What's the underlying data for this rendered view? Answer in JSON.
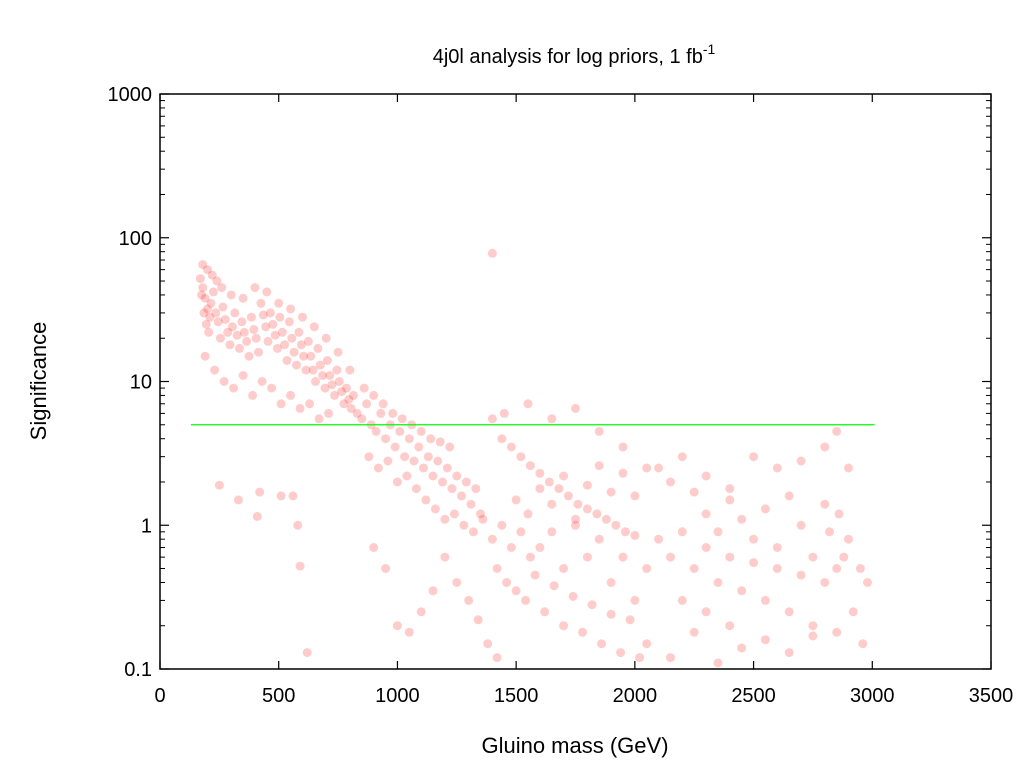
{
  "chart_data": {
    "type": "scatter",
    "title": "4j0l analysis for log priors, 1 fb",
    "title_superscript": "-1",
    "xlabel": "Gluino mass (GeV)",
    "ylabel": "Significance",
    "xlim": [
      0,
      3500
    ],
    "ylim": [
      0.1,
      1000
    ],
    "yscale": "log",
    "grid": false,
    "legend": "none",
    "x_ticks": [
      "0",
      "500",
      "1000",
      "1500",
      "2000",
      "2500",
      "3000",
      "3500"
    ],
    "y_ticks": [
      "0.1",
      "1",
      "10",
      "100",
      "1000"
    ],
    "series": [
      {
        "color": "#ff0000",
        "marker": "circle",
        "alpha": 0.2,
        "points": [
          [
            170,
            52
          ],
          [
            180,
            45
          ],
          [
            190,
            38
          ],
          [
            200,
            32
          ],
          [
            210,
            28
          ],
          [
            175,
            40
          ],
          [
            185,
            30
          ],
          [
            195,
            25
          ],
          [
            205,
            22
          ],
          [
            215,
            35
          ],
          [
            225,
            42
          ],
          [
            235,
            30
          ],
          [
            245,
            26
          ],
          [
            255,
            20
          ],
          [
            265,
            33
          ],
          [
            275,
            27
          ],
          [
            285,
            22
          ],
          [
            295,
            18
          ],
          [
            305,
            24
          ],
          [
            315,
            30
          ],
          [
            325,
            21
          ],
          [
            335,
            17
          ],
          [
            345,
            26
          ],
          [
            355,
            22
          ],
          [
            365,
            19
          ],
          [
            375,
            15
          ],
          [
            385,
            28
          ],
          [
            395,
            23
          ],
          [
            405,
            20
          ],
          [
            415,
            16
          ],
          [
            425,
            35
          ],
          [
            435,
            29
          ],
          [
            445,
            24
          ],
          [
            455,
            19
          ],
          [
            465,
            30
          ],
          [
            475,
            25
          ],
          [
            485,
            21
          ],
          [
            495,
            17
          ],
          [
            505,
            28
          ],
          [
            515,
            22
          ],
          [
            525,
            18
          ],
          [
            535,
            14
          ],
          [
            545,
            26
          ],
          [
            555,
            20
          ],
          [
            565,
            16
          ],
          [
            575,
            13
          ],
          [
            585,
            22
          ],
          [
            595,
            18
          ],
          [
            605,
            15
          ],
          [
            615,
            12
          ],
          [
            625,
            19
          ],
          [
            635,
            15
          ],
          [
            645,
            12
          ],
          [
            655,
            10
          ],
          [
            665,
            17
          ],
          [
            675,
            13
          ],
          [
            685,
            11
          ],
          [
            695,
            9
          ],
          [
            705,
            14
          ],
          [
            715,
            11
          ],
          [
            725,
            9.5
          ],
          [
            735,
            8
          ],
          [
            745,
            12
          ],
          [
            755,
            10
          ],
          [
            765,
            8.5
          ],
          [
            775,
            7
          ],
          [
            785,
            9
          ],
          [
            795,
            7.5
          ],
          [
            805,
            6.5
          ],
          [
            815,
            8
          ],
          [
            200,
            60
          ],
          [
            220,
            55
          ],
          [
            240,
            50
          ],
          [
            260,
            45
          ],
          [
            180,
            65
          ],
          [
            300,
            40
          ],
          [
            350,
            38
          ],
          [
            400,
            45
          ],
          [
            450,
            42
          ],
          [
            500,
            35
          ],
          [
            550,
            32
          ],
          [
            600,
            28
          ],
          [
            650,
            24
          ],
          [
            700,
            20
          ],
          [
            750,
            16
          ],
          [
            800,
            12
          ],
          [
            190,
            15
          ],
          [
            230,
            12
          ],
          [
            270,
            10
          ],
          [
            310,
            9
          ],
          [
            350,
            11
          ],
          [
            390,
            8
          ],
          [
            430,
            10
          ],
          [
            470,
            9
          ],
          [
            510,
            7
          ],
          [
            550,
            8
          ],
          [
            590,
            6.5
          ],
          [
            630,
            7
          ],
          [
            670,
            5.5
          ],
          [
            710,
            6
          ],
          [
            830,
            6
          ],
          [
            850,
            5.5
          ],
          [
            870,
            7
          ],
          [
            890,
            5
          ],
          [
            910,
            4.5
          ],
          [
            930,
            6
          ],
          [
            950,
            4
          ],
          [
            970,
            5
          ],
          [
            990,
            3.5
          ],
          [
            1010,
            4.5
          ],
          [
            1030,
            3
          ],
          [
            1050,
            4
          ],
          [
            1070,
            2.8
          ],
          [
            1090,
            3.5
          ],
          [
            1110,
            2.5
          ],
          [
            1130,
            3
          ],
          [
            1150,
            2.2
          ],
          [
            1170,
            2.8
          ],
          [
            1190,
            2
          ],
          [
            1210,
            2.5
          ],
          [
            1230,
            1.8
          ],
          [
            1250,
            2.2
          ],
          [
            1270,
            1.6
          ],
          [
            1290,
            2
          ],
          [
            1310,
            1.4
          ],
          [
            1330,
            1.8
          ],
          [
            1350,
            1.2
          ],
          [
            860,
            9
          ],
          [
            900,
            8
          ],
          [
            940,
            7
          ],
          [
            980,
            6
          ],
          [
            1020,
            5.5
          ],
          [
            1060,
            5
          ],
          [
            1100,
            4.5
          ],
          [
            1140,
            4
          ],
          [
            1180,
            3.8
          ],
          [
            1220,
            3.5
          ],
          [
            880,
            3
          ],
          [
            920,
            2.5
          ],
          [
            960,
            2.8
          ],
          [
            1000,
            2
          ],
          [
            1040,
            2.2
          ],
          [
            1080,
            1.8
          ],
          [
            1120,
            1.5
          ],
          [
            1160,
            1.3
          ],
          [
            1200,
            1.1
          ],
          [
            1240,
            1.2
          ],
          [
            1280,
            1
          ],
          [
            1320,
            0.9
          ],
          [
            1360,
            1.1
          ],
          [
            1400,
            0.8
          ],
          [
            1440,
            1
          ],
          [
            1480,
            0.7
          ],
          [
            1520,
            0.9
          ],
          [
            1560,
            0.6
          ],
          [
            1400,
            78
          ],
          [
            1400,
            5.5
          ],
          [
            1440,
            4
          ],
          [
            1480,
            3.5
          ],
          [
            1520,
            3
          ],
          [
            1560,
            2.6
          ],
          [
            1600,
            2.3
          ],
          [
            1640,
            2
          ],
          [
            1680,
            1.8
          ],
          [
            1720,
            1.6
          ],
          [
            1760,
            1.4
          ],
          [
            1800,
            1.3
          ],
          [
            1840,
            1.2
          ],
          [
            1880,
            1.1
          ],
          [
            1920,
            1
          ],
          [
            1960,
            0.9
          ],
          [
            2000,
            0.85
          ],
          [
            1420,
            0.5
          ],
          [
            1460,
            0.4
          ],
          [
            1500,
            0.35
          ],
          [
            1540,
            0.3
          ],
          [
            1580,
            0.45
          ],
          [
            1620,
            0.25
          ],
          [
            1660,
            0.38
          ],
          [
            1700,
            0.2
          ],
          [
            1740,
            0.32
          ],
          [
            1780,
            0.18
          ],
          [
            1820,
            0.28
          ],
          [
            1860,
            0.15
          ],
          [
            1900,
            0.24
          ],
          [
            1940,
            0.13
          ],
          [
            1980,
            0.22
          ],
          [
            2020,
            0.12
          ],
          [
            1450,
            6
          ],
          [
            1550,
            7
          ],
          [
            1650,
            5.5
          ],
          [
            1750,
            6.5
          ],
          [
            1850,
            4.5
          ],
          [
            1950,
            3.5
          ],
          [
            2050,
            2.5
          ],
          [
            2150,
            2
          ],
          [
            2250,
            1.7
          ],
          [
            2100,
            0.8
          ],
          [
            2150,
            0.6
          ],
          [
            2200,
            0.9
          ],
          [
            2250,
            0.5
          ],
          [
            2300,
            0.7
          ],
          [
            2350,
            0.4
          ],
          [
            2400,
            0.6
          ],
          [
            2450,
            0.35
          ],
          [
            2500,
            0.55
          ],
          [
            2550,
            0.3
          ],
          [
            2600,
            0.5
          ],
          [
            2650,
            0.25
          ],
          [
            2700,
            0.45
          ],
          [
            2750,
            0.2
          ],
          [
            2800,
            0.4
          ],
          [
            2850,
            0.18
          ],
          [
            2100,
            2.5
          ],
          [
            2200,
            3
          ],
          [
            2300,
            2.2
          ],
          [
            2400,
            1.8
          ],
          [
            2500,
            3
          ],
          [
            2600,
            2.5
          ],
          [
            2700,
            2.8
          ],
          [
            2800,
            3.5
          ],
          [
            2850,
            4.5
          ],
          [
            2050,
            0.15
          ],
          [
            2150,
            0.12
          ],
          [
            2250,
            0.18
          ],
          [
            2350,
            0.11
          ],
          [
            2450,
            0.14
          ],
          [
            2550,
            0.16
          ],
          [
            2650,
            0.13
          ],
          [
            2750,
            0.17
          ],
          [
            2900,
            0.8
          ],
          [
            2950,
            0.5
          ],
          [
            2980,
            0.4
          ],
          [
            2920,
            0.25
          ],
          [
            2960,
            0.15
          ],
          [
            2880,
            0.6
          ],
          [
            2860,
            1.2
          ],
          [
            2820,
            0.9
          ],
          [
            2300,
            1.2
          ],
          [
            2350,
            0.9
          ],
          [
            2400,
            1.5
          ],
          [
            2450,
            1.1
          ],
          [
            2500,
            0.8
          ],
          [
            2550,
            1.3
          ],
          [
            2600,
            0.7
          ],
          [
            2650,
            1.6
          ],
          [
            2700,
            1
          ],
          [
            2750,
            0.6
          ],
          [
            2800,
            1.4
          ],
          [
            2850,
            0.5
          ],
          [
            2900,
            2.5
          ],
          [
            2200,
            0.3
          ],
          [
            2300,
            0.25
          ],
          [
            2400,
            0.2
          ],
          [
            250,
            1.9
          ],
          [
            330,
            1.5
          ],
          [
            420,
            1.7
          ],
          [
            560,
            1.6
          ],
          [
            580,
            1.0
          ],
          [
            590,
            0.52
          ],
          [
            620,
            0.13
          ],
          [
            410,
            1.15
          ],
          [
            510,
            1.6
          ],
          [
            1300,
            0.3
          ],
          [
            1340,
            0.22
          ],
          [
            1380,
            0.15
          ],
          [
            1420,
            0.12
          ],
          [
            1250,
            0.4
          ],
          [
            1200,
            0.6
          ],
          [
            1150,
            0.35
          ],
          [
            1100,
            0.25
          ],
          [
            1050,
            0.18
          ],
          [
            1000,
            0.2
          ],
          [
            950,
            0.5
          ],
          [
            900,
            0.7
          ],
          [
            1600,
            0.7
          ],
          [
            1650,
            0.9
          ],
          [
            1700,
            0.5
          ],
          [
            1750,
            1
          ],
          [
            1800,
            0.6
          ],
          [
            1850,
            0.8
          ],
          [
            1900,
            0.4
          ],
          [
            1950,
            0.6
          ],
          [
            2000,
            0.3
          ],
          [
            2050,
            0.5
          ],
          [
            1500,
            1.5
          ],
          [
            1550,
            1.2
          ],
          [
            1600,
            1.8
          ],
          [
            1650,
            1.4
          ],
          [
            1700,
            2.2
          ],
          [
            1750,
            1.1
          ],
          [
            1800,
            1.9
          ],
          [
            1850,
            2.6
          ],
          [
            1900,
            1.7
          ],
          [
            1950,
            2.3
          ],
          [
            2000,
            1.6
          ]
        ]
      },
      {
        "color": "#00ff00",
        "kind": "line",
        "x": [
          130,
          3010
        ],
        "y": [
          5,
          5
        ]
      }
    ]
  }
}
